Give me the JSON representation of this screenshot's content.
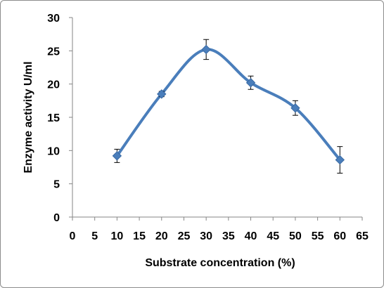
{
  "chart_data": {
    "type": "scatter",
    "title": "",
    "xlabel": "Substrate concentration (%)",
    "ylabel": "Enzyme activity U/ml",
    "xlim": [
      0,
      65
    ],
    "ylim": [
      0,
      30
    ],
    "xticks": [
      0,
      5,
      10,
      15,
      20,
      25,
      30,
      35,
      40,
      45,
      50,
      55,
      60,
      65
    ],
    "yticks": [
      0,
      5,
      10,
      15,
      20,
      25,
      30
    ],
    "grid": false,
    "smooth_line": true,
    "series": [
      {
        "x": [
          10,
          20,
          30,
          40,
          50,
          60
        ],
        "y": [
          9.2,
          18.5,
          25.2,
          20.2,
          16.4,
          8.6
        ],
        "error": [
          1.0,
          0.4,
          1.5,
          1.0,
          1.1,
          2.0
        ],
        "color": "#4a7ebb",
        "marker": "diamond"
      }
    ]
  }
}
